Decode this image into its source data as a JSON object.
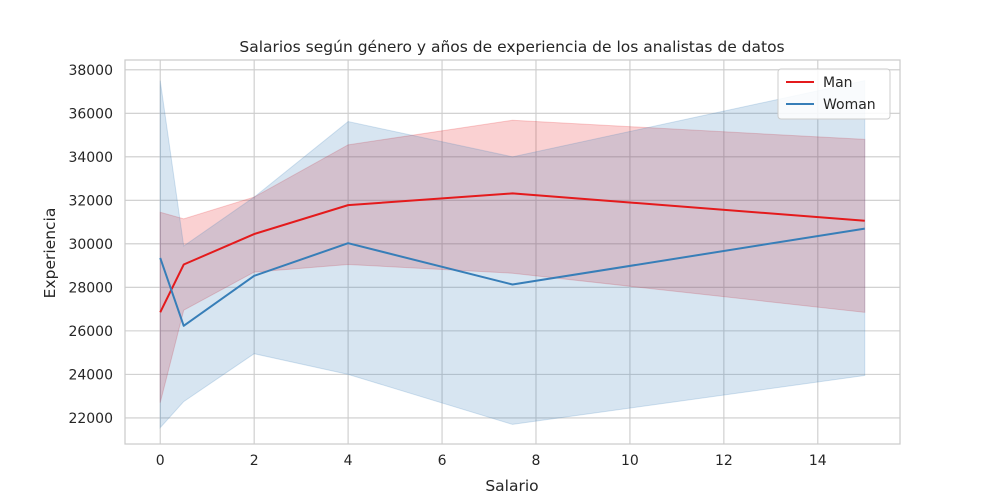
{
  "chart_data": {
    "type": "line",
    "title": "Salarios según género y años de experiencia de los analistas de datos",
    "xlabel": "Salario",
    "ylabel": "Experiencia",
    "xlim": [
      -0.75,
      15.75
    ],
    "ylim": [
      20800,
      38450
    ],
    "xticks": [
      0,
      2,
      4,
      6,
      8,
      10,
      12,
      14
    ],
    "yticks": [
      22000,
      24000,
      26000,
      28000,
      30000,
      32000,
      34000,
      36000,
      38000
    ],
    "grid": true,
    "legend_position": "top-right",
    "series": [
      {
        "name": "Man",
        "color": "#e41a1c",
        "x": [
          0,
          0.5,
          2,
          4,
          7.5,
          15
        ],
        "y": [
          26850,
          29050,
          30450,
          31780,
          32320,
          31060
        ],
        "ci_upper": [
          31450,
          31150,
          32150,
          34550,
          35680,
          34800
        ],
        "ci_lower": [
          22700,
          26950,
          28700,
          29050,
          28650,
          26850
        ]
      },
      {
        "name": "Woman",
        "color": "#377eb8",
        "x": [
          0,
          0.5,
          2,
          4,
          7.5,
          15
        ],
        "y": [
          29350,
          26230,
          28530,
          30030,
          28130,
          30700
        ],
        "ci_upper": [
          37500,
          29900,
          32150,
          35620,
          34000,
          37500
        ],
        "ci_lower": [
          21550,
          22750,
          24950,
          24000,
          21700,
          23950
        ]
      }
    ]
  }
}
